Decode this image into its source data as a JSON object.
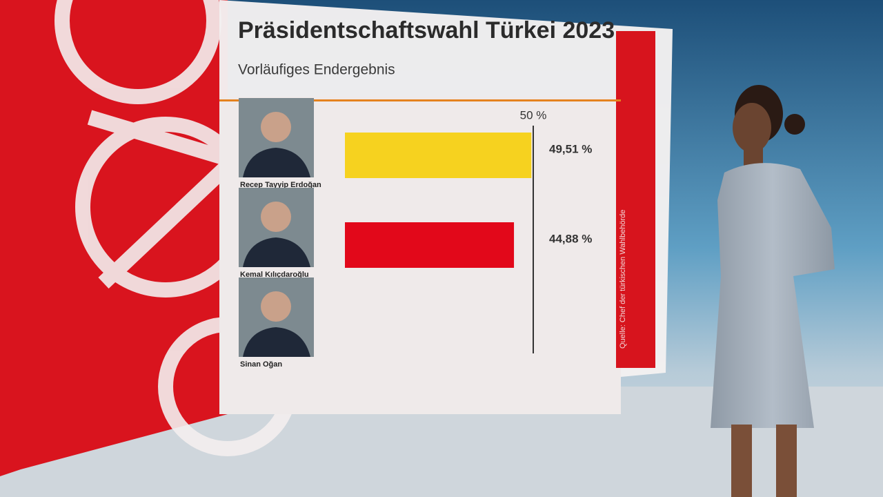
{
  "chart_data": {
    "type": "bar",
    "orientation": "horizontal",
    "title": "Präsidentschaftswahl Türkei 2023",
    "subtitle": "Vorläufiges Endergebnis",
    "categories": [
      "Recep Tayyip Erdoğan",
      "Kemal Kılıçdaroğlu",
      "Sinan Oğan"
    ],
    "values": [
      49.51,
      44.88,
      null
    ],
    "value_labels": [
      "49,51 %",
      "44,88 %",
      null
    ],
    "colors": [
      "#f6d21f",
      "#e2081a",
      "#999999"
    ],
    "xlim": [
      0,
      50
    ],
    "reference_line": {
      "value": 50,
      "label": "50 %"
    },
    "source": "Quelle: Chef der türkischen Wahlbehörde"
  }
}
